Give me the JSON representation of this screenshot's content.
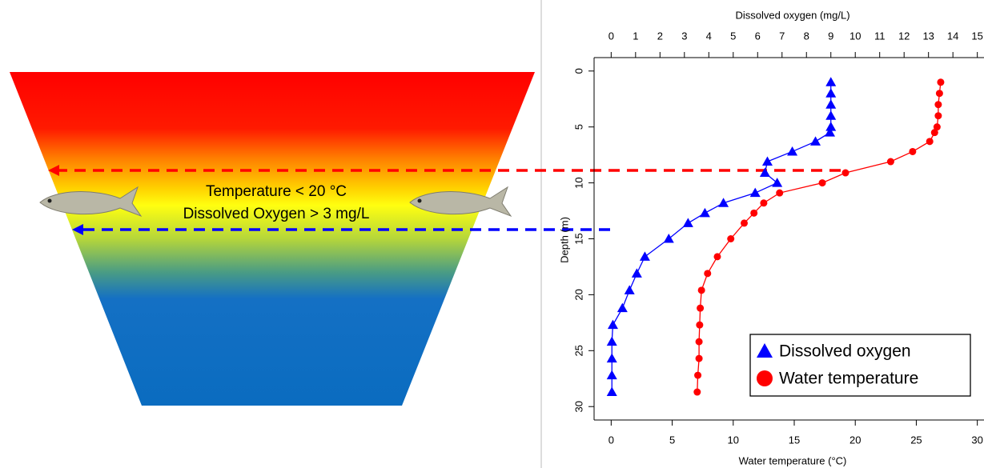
{
  "diagram": {
    "labels": [
      "Temperature < 20 °C",
      "Dissolved Oxygen > 3 mg/L"
    ]
  },
  "chart_data": {
    "type": "line",
    "x_label": "Dissolved oxygen (mg/L)",
    "x2_label": "Water temperature (°C)",
    "y_label": "Depth (m)",
    "depth": [
      1,
      2,
      3,
      4,
      5,
      5.5,
      6.3,
      7.2,
      8.1,
      9.1,
      10,
      10.9,
      11.8,
      12.7,
      13.6,
      15,
      16.6,
      18.1,
      19.6,
      21.2,
      22.7,
      24.2,
      25.7,
      27.2,
      28.7
    ],
    "xlim": [
      -0.7,
      15.7
    ],
    "xticks": [
      0,
      1,
      2,
      3,
      4,
      5,
      6,
      7,
      8,
      9,
      10,
      11,
      12,
      13,
      14,
      15
    ],
    "x2lim": [
      -1.4,
      31.4
    ],
    "x2ticks": [
      0,
      5,
      10,
      15,
      20,
      25,
      30
    ],
    "ylim": [
      31.2,
      -1.2
    ],
    "yticks": [
      0,
      5,
      10,
      15,
      20,
      25,
      30
    ],
    "legend": "bottom-right",
    "series": [
      {
        "name": "Dissolved oxygen",
        "color": "#0000ff",
        "marker": "triangle",
        "axis": "x",
        "values": [
          9.0,
          9.0,
          9.0,
          9.0,
          9.0,
          8.96,
          8.37,
          7.42,
          6.4,
          6.3,
          6.8,
          5.9,
          4.6,
          3.84,
          3.15,
          2.36,
          1.38,
          1.05,
          0.75,
          0.46,
          0.07,
          0.03,
          0.03,
          0.03,
          0.03
        ]
      },
      {
        "name": "Water temperature",
        "color": "#ff0000",
        "marker": "circle",
        "axis": "x2",
        "values": [
          27.0,
          26.9,
          26.8,
          26.8,
          26.7,
          26.5,
          26.1,
          24.7,
          22.9,
          19.2,
          17.3,
          13.8,
          12.5,
          11.7,
          10.9,
          9.8,
          8.7,
          7.9,
          7.4,
          7.3,
          7.25,
          7.2,
          7.2,
          7.1,
          7.05
        ]
      }
    ]
  }
}
